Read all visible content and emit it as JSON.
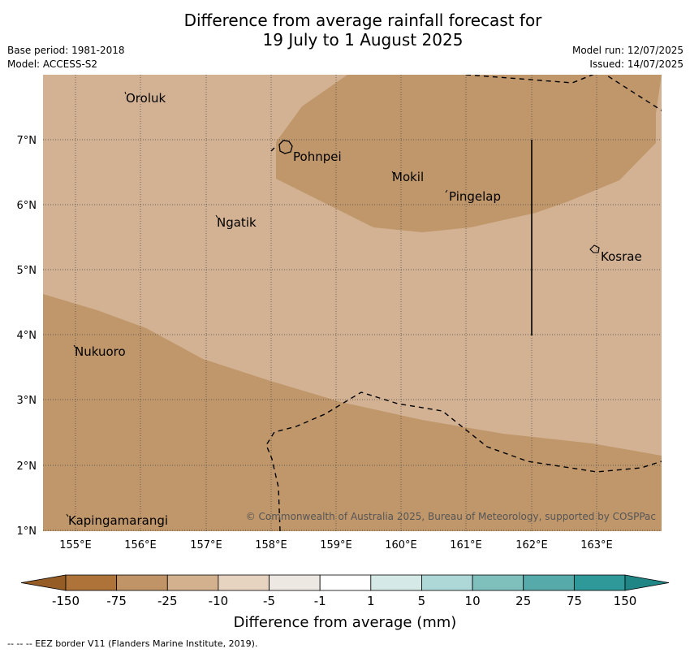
{
  "title_line1": "Difference from average rainfall forecast for",
  "title_line2": "19 July to 1 August 2025",
  "base_period": "Base period: 1981-2018",
  "model": "Model: ACCESS-S2",
  "model_run": "Model run: 12/07/2025",
  "issued": "Issued: 14/07/2025",
  "copyright": "© Commonwealth of Australia 2025, Bureau of Meteorology, supported by COSPPac",
  "x_ticks": [
    "155°E",
    "156°E",
    "157°E",
    "158°E",
    "159°E",
    "160°E",
    "161°E",
    "162°E",
    "163°E"
  ],
  "y_ticks": [
    "7°N",
    "6°N",
    "5°N",
    "4°N",
    "3°N",
    "2°N",
    "1°N"
  ],
  "places": [
    "Oroluk",
    "Pohnpei",
    "Mokil",
    "Pingelap",
    "Ngatik",
    "Kosrae",
    "Nukuoro",
    "Kapingamarangi"
  ],
  "colorbar": {
    "title": "Difference from average (mm)",
    "labels": [
      "-150",
      "-75",
      "-25",
      "-10",
      "-5",
      "-1",
      "1",
      "5",
      "10",
      "25",
      "75",
      "150"
    ],
    "colors": [
      "#ad7339",
      "#c09467",
      "#d3b08e",
      "#e6d3c0",
      "#ede8e1",
      "#ffffff",
      "#d5e9e7",
      "#aed8d8",
      "#7fc0bd",
      "#56abaa",
      "#2f9898"
    ]
  },
  "fill_colors": {
    "light": "#d3b294",
    "mid": "#c0976b"
  },
  "footer": "--  --  -- EEZ border V11 (Flanders Marine Institute, 2019)."
}
